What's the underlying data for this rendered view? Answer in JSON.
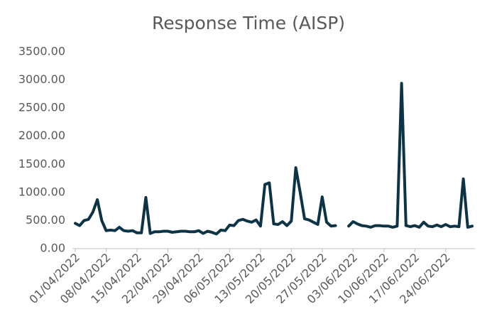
{
  "chart_data": {
    "type": "line",
    "title": "Response Time (AISP)",
    "categories": [
      "01/04/2022",
      null,
      null,
      null,
      null,
      null,
      null,
      "08/04/2022",
      null,
      null,
      null,
      null,
      null,
      null,
      "15/04/2022",
      null,
      null,
      null,
      null,
      null,
      null,
      "22/04/2022",
      null,
      null,
      null,
      null,
      null,
      null,
      "29/04/2022",
      null,
      null,
      null,
      null,
      null,
      null,
      "06/05/2022",
      null,
      null,
      null,
      null,
      null,
      null,
      "13/05/2022",
      null,
      null,
      null,
      null,
      null,
      null,
      "20/05/2022",
      null,
      null,
      null,
      null,
      null,
      null,
      "27/05/2022",
      null,
      null,
      null,
      null,
      null,
      null,
      "03/06/2022",
      null,
      null,
      null,
      null,
      null,
      null,
      "10/06/2022",
      null,
      null,
      null,
      null,
      null,
      null,
      "17/06/2022",
      null,
      null,
      null,
      null,
      null,
      null,
      "24/06/2022",
      null,
      null,
      null,
      null,
      null,
      null
    ],
    "series": [
      {
        "name": "Response Time (AISP)",
        "color": "#0d3346",
        "values": [
          450,
          410,
          500,
          520,
          650,
          870,
          500,
          320,
          330,
          320,
          380,
          320,
          310,
          320,
          280,
          280,
          910,
          270,
          300,
          300,
          310,
          310,
          290,
          300,
          310,
          310,
          300,
          300,
          320,
          270,
          310,
          290,
          260,
          330,
          320,
          420,
          410,
          500,
          520,
          490,
          470,
          510,
          400,
          1140,
          1170,
          440,
          430,
          480,
          410,
          490,
          1440,
          1000,
          530,
          510,
          470,
          430,
          920,
          470,
          400,
          410,
          null,
          null,
          400,
          480,
          440,
          410,
          400,
          380,
          410,
          410,
          400,
          400,
          380,
          400,
          2940,
          410,
          390,
          410,
          380,
          470,
          400,
          390,
          420,
          390,
          430,
          390,
          400,
          390,
          1240,
          380,
          400
        ]
      }
    ],
    "ylim": [
      0,
      3500
    ],
    "yticks": [
      {
        "value": 0,
        "label": "0.00"
      },
      {
        "value": 500,
        "label": "500.00"
      },
      {
        "value": 1000,
        "label": "1000.00"
      },
      {
        "value": 1500,
        "label": "1500.00"
      },
      {
        "value": 2000,
        "label": "2000.00"
      },
      {
        "value": 2500,
        "label": "2500.00"
      },
      {
        "value": 3000,
        "label": "3000.00"
      },
      {
        "value": 3500,
        "label": "3500.00"
      }
    ],
    "grid": false
  }
}
